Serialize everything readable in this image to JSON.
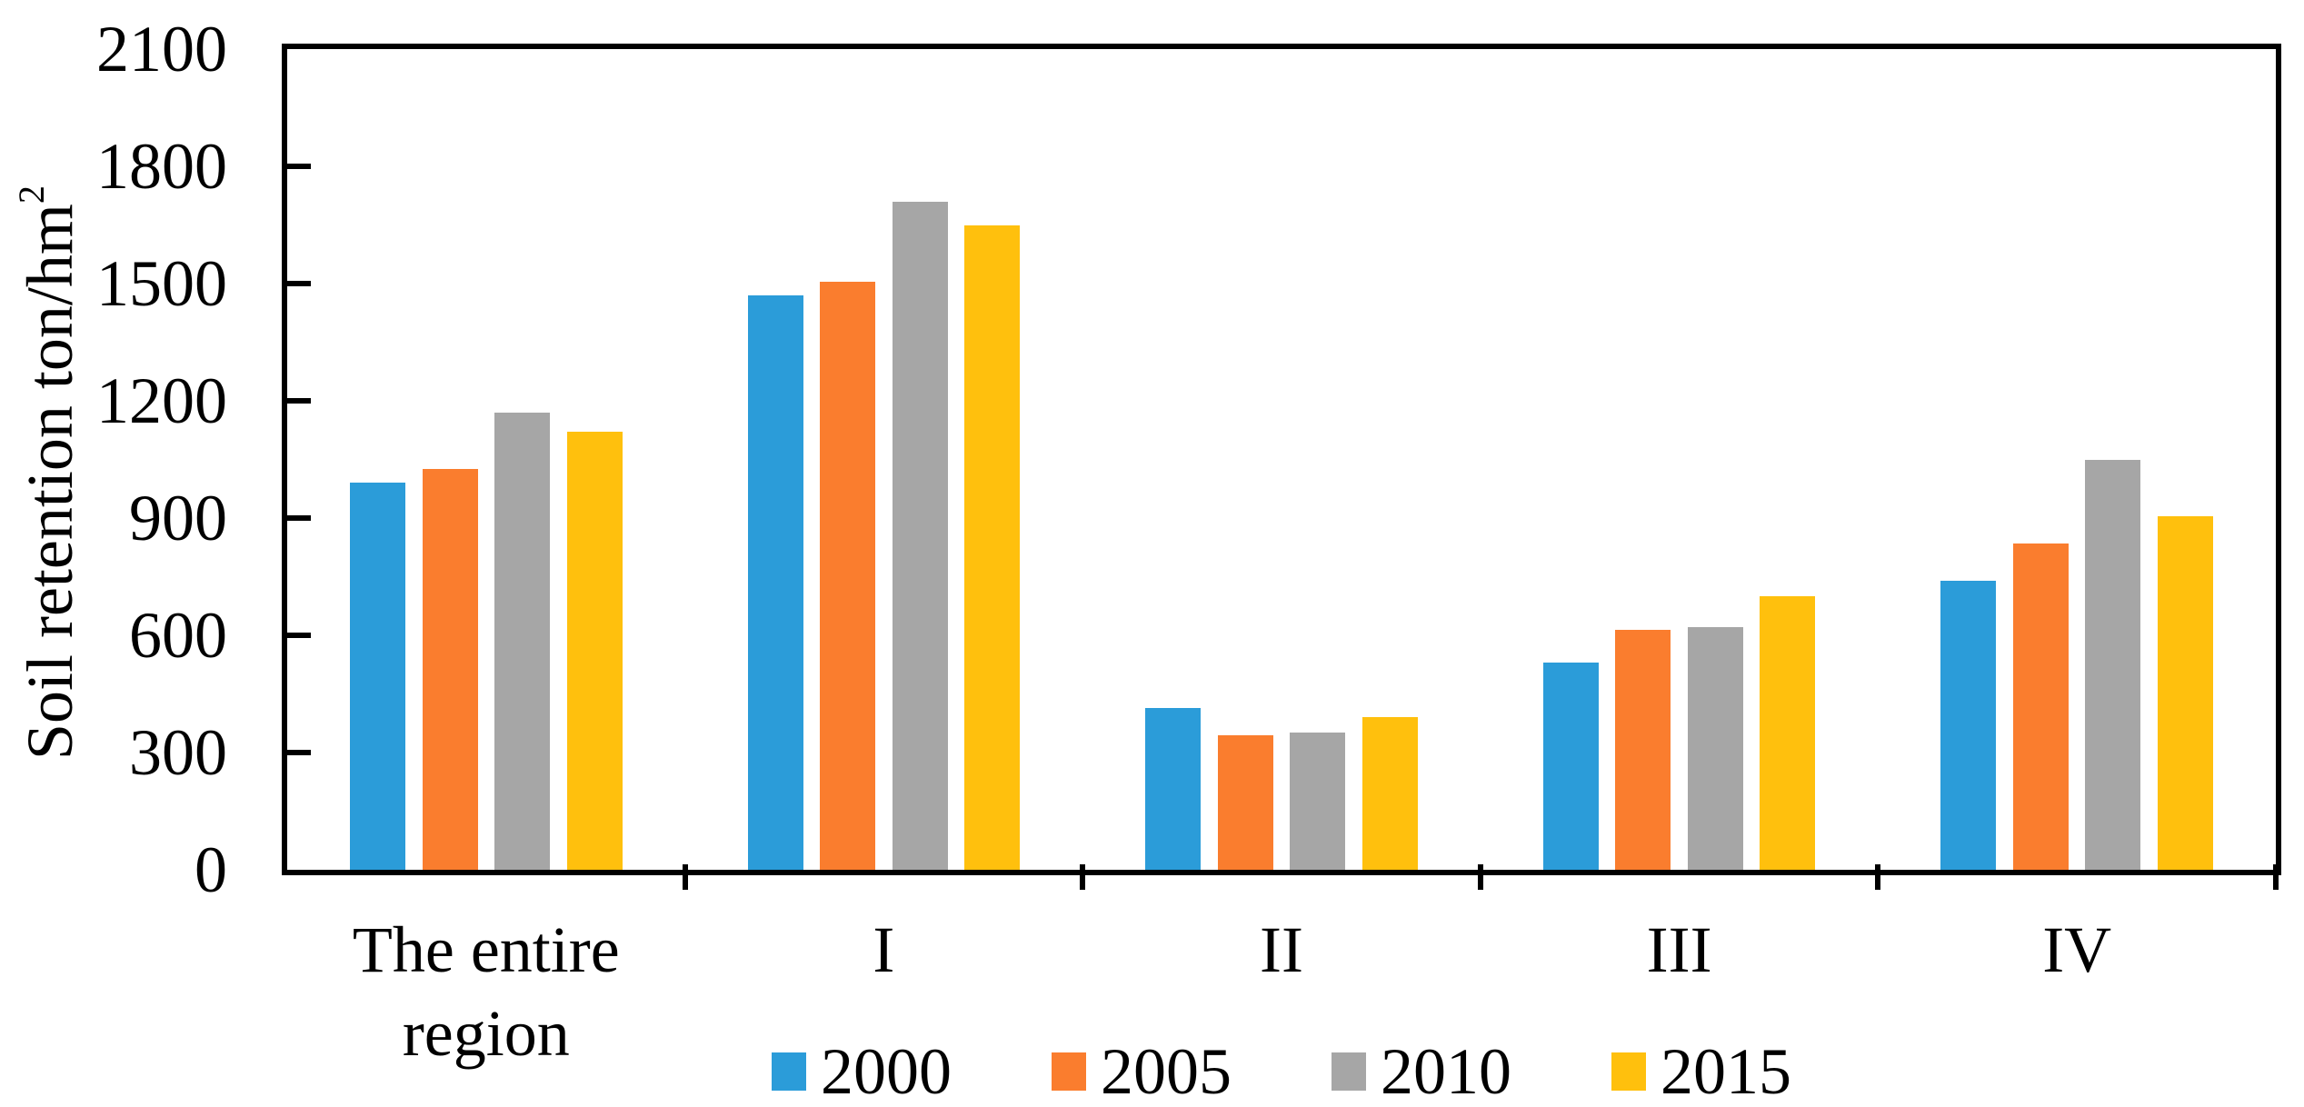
{
  "figure": {
    "background": "#ffffff",
    "axis_color": "#000000",
    "text_color": "#000000"
  },
  "y_axis": {
    "title_base": "Soil retention ton/hm",
    "title_superscript": "2"
  },
  "chart_data": {
    "type": "bar",
    "title": "",
    "xlabel": "",
    "ylabel": "Soil retention ton/hm²",
    "ylim": [
      0,
      2100
    ],
    "ytick_interval": 300,
    "yticks": [
      0,
      300,
      600,
      900,
      1200,
      1500,
      1800,
      2100
    ],
    "grid": false,
    "legend_position": "bottom",
    "categories": [
      "The entire region",
      "I",
      "II",
      "III",
      "IV"
    ],
    "series": [
      {
        "name": "2000",
        "color": "#2B9CD9",
        "values": [
          990,
          1470,
          415,
          530,
          740
        ]
      },
      {
        "name": "2005",
        "color": "#FA7D2E",
        "values": [
          1025,
          1505,
          345,
          615,
          835
        ]
      },
      {
        "name": "2010",
        "color": "#A6A6A6",
        "values": [
          1170,
          1710,
          352,
          620,
          1050
        ]
      },
      {
        "name": "2015",
        "color": "#FFC00D",
        "values": [
          1120,
          1650,
          390,
          700,
          905
        ]
      }
    ]
  }
}
